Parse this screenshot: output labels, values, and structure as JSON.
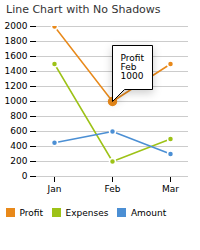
{
  "chart_data": {
    "type": "line",
    "title": "Line Chart with No Shadows",
    "categories": [
      "Jan",
      "Feb",
      "Mar"
    ],
    "series": [
      {
        "name": "Profit",
        "color": "#E8891A",
        "values": [
          2000,
          1000,
          1500
        ]
      },
      {
        "name": "Expenses",
        "color": "#9DC217",
        "values": [
          1500,
          200,
          500
        ]
      },
      {
        "name": "Amount",
        "color": "#4B8FD4",
        "values": [
          450,
          600,
          300
        ]
      }
    ],
    "ylim": [
      0,
      2000
    ],
    "yticks": [
      0,
      200,
      400,
      600,
      800,
      1000,
      1200,
      1400,
      1600,
      1800,
      2000
    ],
    "grid": true,
    "legend": "lower left",
    "marker": "circle",
    "annotations": [
      {
        "x": "Feb",
        "y": 1000,
        "text": [
          "Profit",
          "Feb",
          "1000"
        ],
        "color": "#E8891A"
      }
    ]
  }
}
